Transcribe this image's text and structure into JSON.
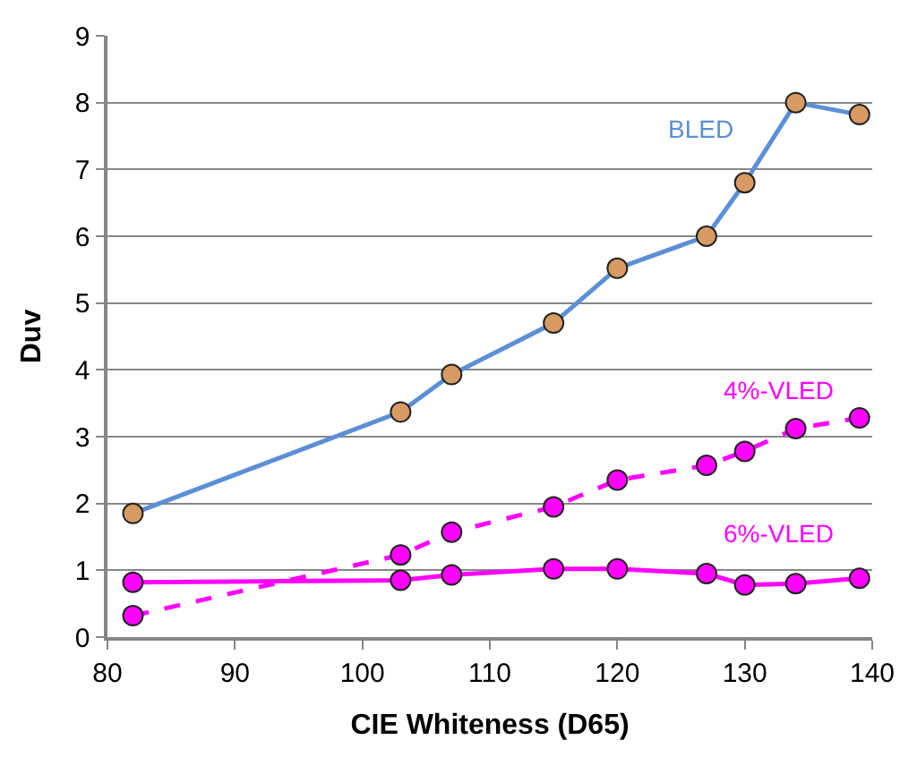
{
  "chart_data": {
    "type": "line",
    "xlabel": "CIE Whiteness (D65)",
    "ylabel": "Duv",
    "x": [
      82,
      103,
      107,
      115,
      120,
      127,
      130,
      134,
      139
    ],
    "series": [
      {
        "name": "BLED",
        "color": "#5b8fd6",
        "colors": [
          "#d89a63",
          "#d89a63",
          "#d89a63",
          "#d89a63",
          "#d89a63",
          "#d89a63",
          "#d89a63",
          "#d89a63",
          "#d89a63"
        ],
        "line_style": "solid",
        "values": [
          1.85,
          3.37,
          3.93,
          4.7,
          5.52,
          6.0,
          6.8,
          8.0,
          7.82
        ]
      },
      {
        "name": "4%-VLED",
        "color": "#ff00ff",
        "line_style": "dashed",
        "values": [
          0.32,
          1.23,
          1.57,
          1.95,
          2.35,
          2.57,
          2.78,
          3.12,
          3.28
        ]
      },
      {
        "name": "6%-VLED",
        "color": "#ff00ff",
        "line_style": "solid",
        "values": [
          0.82,
          0.85,
          0.93,
          1.02,
          1.02,
          0.95,
          0.78,
          0.8,
          0.88
        ]
      }
    ],
    "xlim": [
      80,
      140
    ],
    "xticks": [
      80,
      90,
      100,
      110,
      120,
      130,
      140
    ],
    "ylim": [
      0,
      9
    ],
    "yticks": [
      0,
      1,
      2,
      3,
      4,
      5,
      6,
      7,
      8,
      9
    ],
    "grid": "y",
    "legend": false,
    "marker": "circle"
  }
}
